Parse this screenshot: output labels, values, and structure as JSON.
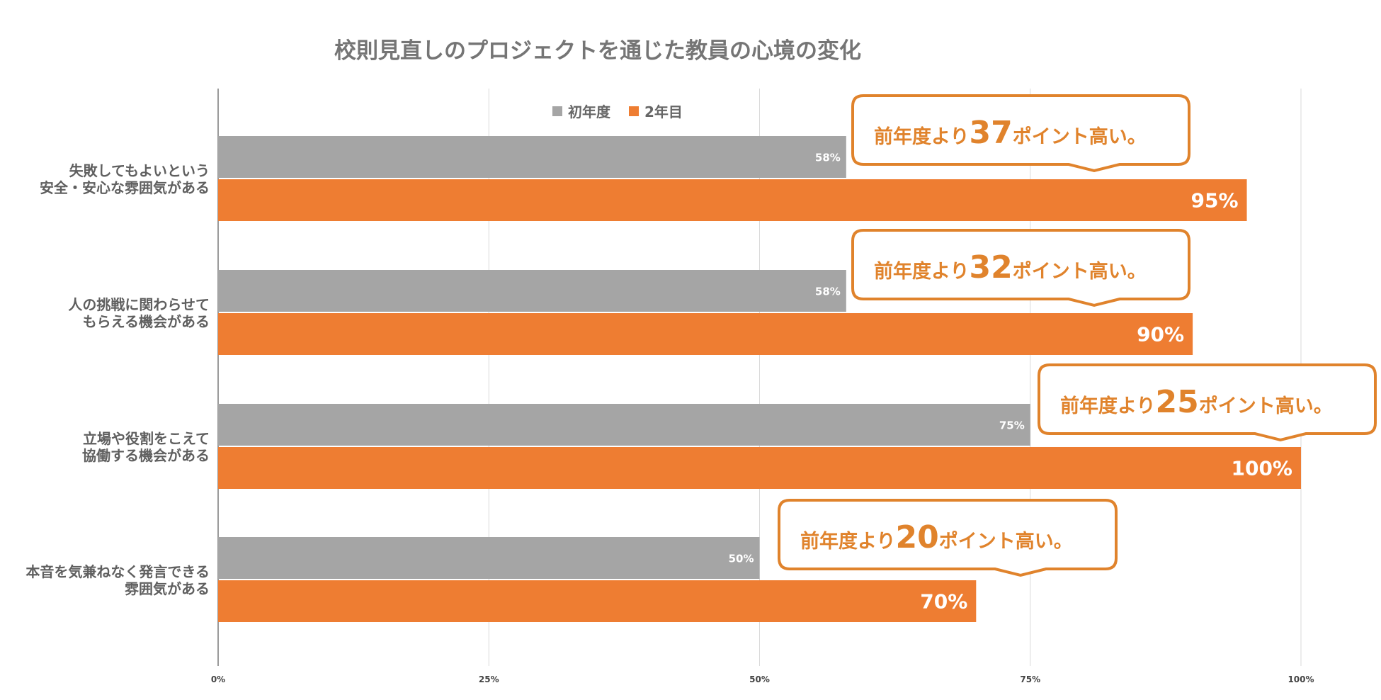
{
  "chart_data": {
    "type": "bar",
    "orientation": "horizontal",
    "title": "校則見直しのプロジェクトを通じた教員の心境の変化",
    "categories": [
      [
        "失敗してもよいという",
        "安全・安心な雰囲気がある"
      ],
      [
        "人の挑戦に関わらせて",
        "もらえる機会がある"
      ],
      [
        "立場や役割をこえて",
        "協働する機会がある"
      ],
      [
        "本音を気兼ねなく発言できる",
        "雰囲気がある"
      ]
    ],
    "series": [
      {
        "name": "初年度",
        "values": [
          58,
          58,
          75,
          50
        ],
        "labels": [
          "58%",
          "58%",
          "75%",
          "50%"
        ],
        "color": "#a5a5a5"
      },
      {
        "name": "2年目",
        "values": [
          95,
          90,
          100,
          70
        ],
        "labels": [
          "95%",
          "90%",
          "100%",
          "70%"
        ],
        "color": "#ee7d32"
      }
    ],
    "xlim": [
      0,
      100
    ],
    "x_ticks": [
      "0%",
      "25%",
      "50%",
      "75%",
      "100%"
    ],
    "x_tick_values": [
      0,
      25,
      50,
      75,
      100
    ],
    "grid": true,
    "legend_position": "top",
    "annotations": [
      {
        "prefix": "前年度より",
        "number": "37",
        "suffix": "ポイント高い。"
      },
      {
        "prefix": "前年度より",
        "number": "32",
        "suffix": "ポイント高い。"
      },
      {
        "prefix": "前年度より",
        "number": "25",
        "suffix": "ポイント高い。"
      },
      {
        "prefix": "前年度より",
        "number": "20",
        "suffix": "ポイント高い。"
      }
    ],
    "annotation_color": "#e0832c"
  }
}
